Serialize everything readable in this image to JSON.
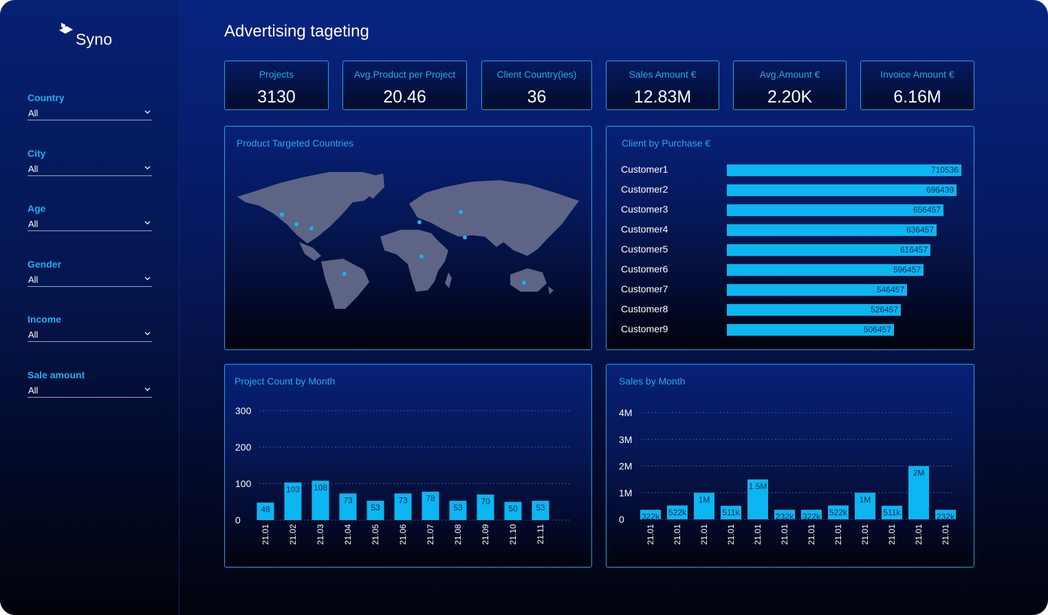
{
  "app": {
    "name": "Syno"
  },
  "page": {
    "title": "Advertising tageting"
  },
  "filters": [
    {
      "label": "Country",
      "value": "All"
    },
    {
      "label": "City",
      "value": "All"
    },
    {
      "label": "Age",
      "value": "All"
    },
    {
      "label": "Gender",
      "value": "All"
    },
    {
      "label": "Income",
      "value": "All"
    },
    {
      "label": "Sale amount",
      "value": "All"
    }
  ],
  "kpis": [
    {
      "label": "Projects",
      "value": "3130"
    },
    {
      "label": "Avg.Product per Project",
      "value": "20.46"
    },
    {
      "label": "Client Country(ies)",
      "value": "36"
    },
    {
      "label": "Sales Amount €",
      "value": "12.83M"
    },
    {
      "label": "Avg.Amount €",
      "value": "2.20K"
    },
    {
      "label": "Invoice Amount €",
      "value": "6.16M"
    }
  ],
  "map_panel": {
    "title": "Product Targeted Countries"
  },
  "colors": {
    "accent": "#1aa9e6",
    "bar": "#0bb6f1",
    "map_land": "#5d6486",
    "marker": "#19b4f0"
  },
  "chart_data": [
    {
      "type": "bar",
      "orientation": "horizontal",
      "title": "Client by Purchase €",
      "categories": [
        "Customer1",
        "Customer2",
        "Customer3",
        "Customer4",
        "Customer5",
        "Customer6",
        "Customer7",
        "Customer8",
        "Customer9"
      ],
      "values": [
        710536,
        696439,
        656457,
        636457,
        616457,
        596457,
        546457,
        526457,
        506457
      ],
      "data_labels": [
        "710536",
        "696439",
        "656457",
        "636457",
        "616457",
        "596457",
        "546457",
        "526457",
        "506457"
      ]
    },
    {
      "type": "bar",
      "title": "Project Count by Month",
      "categories": [
        "21.01",
        "21.02",
        "21.03",
        "21.04",
        "21.05",
        "21.06",
        "21.07",
        "21.08",
        "21.09",
        "21.10",
        "21.11"
      ],
      "values": [
        48,
        103,
        108,
        73,
        53,
        73,
        78,
        53,
        70,
        50,
        53
      ],
      "data_labels": [
        "48",
        "103",
        "108",
        "73",
        "53",
        "73",
        "78",
        "53",
        "70",
        "50",
        "53"
      ],
      "yticks": [
        "0",
        "100",
        "200",
        "300"
      ],
      "ylim": [
        0,
        300
      ],
      "grid": true
    },
    {
      "type": "bar",
      "title": "Sales by Month",
      "categories": [
        "21.01",
        "21.01",
        "21.01",
        "21.01",
        "21.01",
        "21.01",
        "21.01",
        "21.01",
        "21.01",
        "21.01",
        "21.01",
        "21.01"
      ],
      "values": [
        322000,
        522000,
        1000000,
        511000,
        1500000,
        232000,
        322000,
        522000,
        1000000,
        511000,
        2000000,
        232000
      ],
      "data_labels": [
        "322k",
        "522k",
        "1M",
        "511k",
        "1.5M",
        "232k",
        "322k",
        "522k",
        "1M",
        "511k",
        "2M",
        "232k"
      ],
      "yticks": [
        "0",
        "1M",
        "2M",
        "3M",
        "4M"
      ],
      "ylim": [
        0,
        4000000
      ],
      "grid": true
    }
  ]
}
